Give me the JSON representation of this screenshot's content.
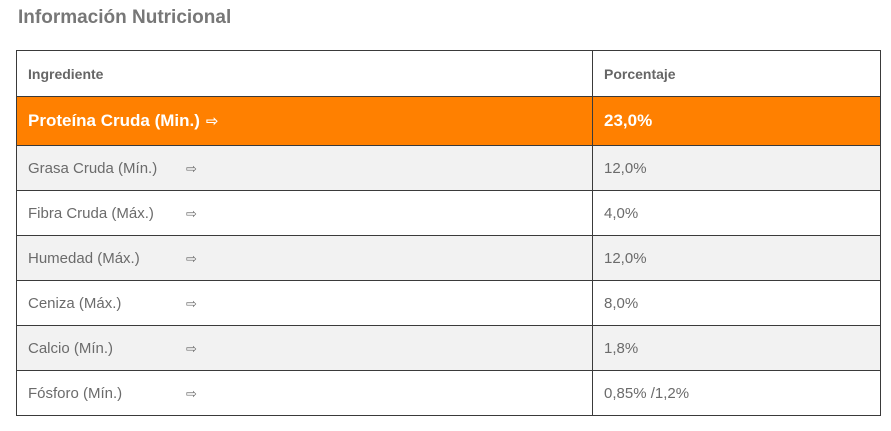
{
  "section": {
    "title": "Información Nutricional"
  },
  "table": {
    "headers": {
      "ingredient": "Ingrediente",
      "percentage": "Porcentaje"
    },
    "arrow_glyph": "⇨",
    "rows": [
      {
        "name": "Proteína Cruda (Min.)",
        "value": "23,0%",
        "highlighted": true
      },
      {
        "name": "Grasa Cruda (Mín.)",
        "value": "12,0%"
      },
      {
        "name": "Fibra Cruda (Máx.)",
        "value": "4,0%"
      },
      {
        "name": "Humedad (Máx.)",
        "value": "12,0%"
      },
      {
        "name": "Ceniza (Máx.)",
        "value": "8,0%"
      },
      {
        "name": "Calcio (Mín.)",
        "value": "1,8%"
      },
      {
        "name": "Fósforo (Mín.)",
        "value": "0,85% /1,2%"
      }
    ]
  },
  "colors": {
    "accent": "#ff8000",
    "border": "#3a3a3a",
    "stripe": "#f2f2f2",
    "text": "#666666"
  }
}
